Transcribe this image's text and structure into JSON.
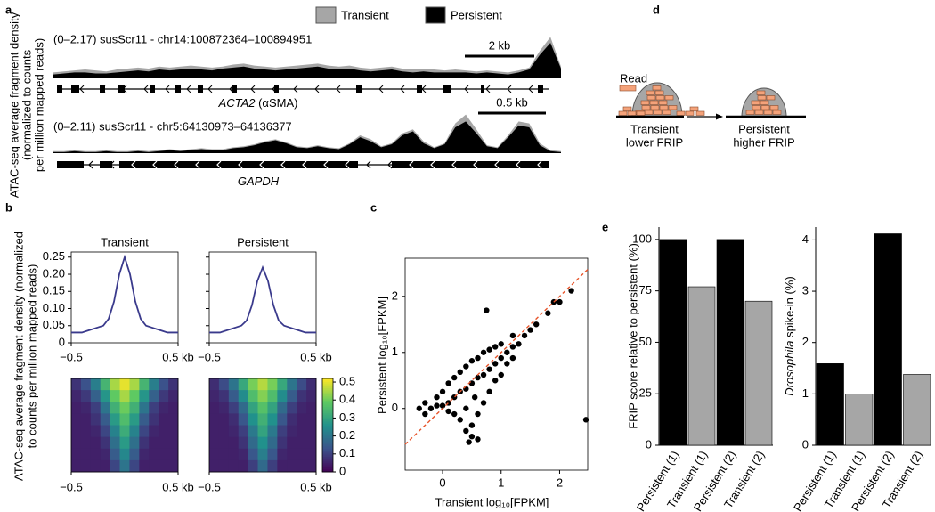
{
  "panel_labels": [
    "a",
    "b",
    "c",
    "d",
    "e"
  ],
  "diagram": {
    "read_label": "Read",
    "states": [
      [
        "Transient",
        "lower FRIP"
      ],
      [
        "Persistent",
        "higher FRIP"
      ]
    ]
  },
  "chart_data": [
    {
      "type": "genome-track",
      "ylabel": [
        "ATAC-seq average fragment density",
        "(normalized to counts",
        "per million mapped reads)"
      ],
      "series": [
        {
          "name": "Transient",
          "color": "#a6a6a6"
        },
        {
          "name": "Persistent",
          "color": "#000000"
        }
      ],
      "tracks": [
        {
          "label": "(0–2.17) susScr11 - chr14:100872364–100894951",
          "ylim": [
            0,
            2.17
          ],
          "scale_bar": "2 kb",
          "gene": "ACTA2",
          "gene_note": "(αSMA)",
          "values": [
            [
              0.3,
              0.35,
              0.4,
              0.45,
              0.4,
              0.35,
              0.45,
              0.5,
              0.55,
              0.5,
              0.6,
              0.55,
              0.6,
              0.65,
              0.6,
              0.55,
              0.6,
              0.7,
              0.75,
              0.65,
              0.6,
              0.55,
              0.6,
              0.65,
              0.7,
              0.75,
              0.65,
              0.6,
              0.65,
              0.55,
              0.5,
              0.55,
              0.6,
              0.5,
              0.45,
              0.5,
              0.45,
              0.4,
              0.45,
              0.4,
              0.35,
              0.4,
              0.35,
              0.3,
              0.4,
              0.55,
              1.4,
              2.1,
              0.6
            ],
            [
              0.2,
              0.25,
              0.3,
              0.3,
              0.25,
              0.25,
              0.3,
              0.35,
              0.4,
              0.35,
              0.45,
              0.4,
              0.45,
              0.5,
              0.45,
              0.4,
              0.5,
              0.55,
              0.6,
              0.5,
              0.45,
              0.4,
              0.45,
              0.5,
              0.55,
              0.6,
              0.5,
              0.45,
              0.5,
              0.4,
              0.35,
              0.4,
              0.45,
              0.35,
              0.3,
              0.35,
              0.3,
              0.3,
              0.3,
              0.3,
              0.25,
              0.3,
              0.25,
              0.2,
              0.3,
              0.45,
              1.2,
              1.8,
              0.5
            ]
          ]
        },
        {
          "label": "(0–2.11) susScr11 - chr5:64130973–64136377",
          "ylim": [
            0,
            2.11
          ],
          "scale_bar": "0.5 kb",
          "gene": "GAPDH",
          "values": [
            [
              0.1,
              0.1,
              0.15,
              0.1,
              0.1,
              0.15,
              0.1,
              0.1,
              0.15,
              0.1,
              0.15,
              0.2,
              0.15,
              0.2,
              0.25,
              0.2,
              0.2,
              0.3,
              0.35,
              0.45,
              0.6,
              0.7,
              0.55,
              0.35,
              0.3,
              0.4,
              0.3,
              0.25,
              0.5,
              0.9,
              0.7,
              0.35,
              0.5,
              1.0,
              1.2,
              0.6,
              0.3,
              0.5,
              1.5,
              1.95,
              1.2,
              0.4,
              0.3,
              0.9,
              1.6,
              1.5,
              0.5,
              0.15,
              0.1
            ],
            [
              0.05,
              0.05,
              0.1,
              0.05,
              0.05,
              0.1,
              0.05,
              0.05,
              0.1,
              0.05,
              0.1,
              0.15,
              0.1,
              0.15,
              0.2,
              0.15,
              0.15,
              0.25,
              0.3,
              0.4,
              0.55,
              0.65,
              0.5,
              0.3,
              0.25,
              0.35,
              0.25,
              0.2,
              0.45,
              0.8,
              0.6,
              0.3,
              0.45,
              0.9,
              1.1,
              0.5,
              0.25,
              0.45,
              1.3,
              1.6,
              1.0,
              0.35,
              0.25,
              0.8,
              1.4,
              1.3,
              0.4,
              0.1,
              0.05
            ]
          ]
        }
      ]
    },
    {
      "type": "profile",
      "ylabel": [
        "ATAC-seq average fragment density (normalized",
        "to counts per million mapped reads)"
      ],
      "color": "#3a3a8c",
      "x": [
        -0.5,
        -0.45,
        -0.4,
        -0.35,
        -0.3,
        -0.25,
        -0.2,
        -0.15,
        -0.1,
        -0.05,
        0,
        0.05,
        0.1,
        0.15,
        0.2,
        0.25,
        0.3,
        0.35,
        0.4,
        0.45,
        0.5
      ],
      "xlim": [
        -0.5,
        0.5
      ],
      "xticks": [
        {
          "value": -0.5,
          "label": "−0.5"
        },
        {
          "value": 0.5,
          "label": "0.5 kb"
        }
      ],
      "ylim": [
        0,
        0.265
      ],
      "yticks": [
        0,
        0.05,
        {
          "value": 0.1,
          "label": "0.10"
        },
        0.15,
        {
          "value": 0.2,
          "label": "0.20"
        },
        0.25
      ],
      "panels": [
        {
          "title": "Transient",
          "values": [
            0.03,
            0.03,
            0.03,
            0.035,
            0.04,
            0.045,
            0.05,
            0.07,
            0.12,
            0.2,
            0.25,
            0.2,
            0.12,
            0.07,
            0.05,
            0.045,
            0.04,
            0.035,
            0.03,
            0.03,
            0.03
          ]
        },
        {
          "title": "Persistent",
          "values": [
            0.03,
            0.03,
            0.03,
            0.035,
            0.04,
            0.045,
            0.05,
            0.065,
            0.11,
            0.18,
            0.22,
            0.18,
            0.11,
            0.065,
            0.05,
            0.045,
            0.04,
            0.035,
            0.03,
            0.03,
            0.03
          ]
        }
      ]
    },
    {
      "type": "heatmap",
      "colorscale": "viridis",
      "xlim": [
        -0.5,
        0.5
      ],
      "xticks": [
        {
          "value": -0.5,
          "label": "−0.5"
        },
        {
          "value": 0.5,
          "label": "0.5 kb"
        }
      ],
      "clim": [
        0,
        0.52
      ],
      "cticks": [
        0,
        0.1,
        0.2,
        0.3,
        0.4,
        0.5
      ],
      "panels": [
        {
          "values": [
            [
              0.08,
              0.13,
              0.22,
              0.34,
              0.45,
              0.5,
              0.45,
              0.34,
              0.22,
              0.13,
              0.08
            ],
            [
              0.06,
              0.09,
              0.16,
              0.27,
              0.39,
              0.45,
              0.39,
              0.27,
              0.16,
              0.09,
              0.06
            ],
            [
              0.05,
              0.06,
              0.1,
              0.2,
              0.33,
              0.4,
              0.33,
              0.2,
              0.1,
              0.06,
              0.05
            ],
            [
              0.05,
              0.05,
              0.08,
              0.15,
              0.28,
              0.36,
              0.28,
              0.15,
              0.08,
              0.05,
              0.05
            ],
            [
              0.05,
              0.05,
              0.06,
              0.11,
              0.23,
              0.32,
              0.23,
              0.11,
              0.06,
              0.05,
              0.05
            ],
            [
              0.05,
              0.05,
              0.05,
              0.08,
              0.19,
              0.28,
              0.19,
              0.08,
              0.05,
              0.05,
              0.05
            ],
            [
              0.05,
              0.05,
              0.05,
              0.06,
              0.15,
              0.24,
              0.15,
              0.06,
              0.05,
              0.05,
              0.05
            ],
            [
              0.05,
              0.05,
              0.05,
              0.05,
              0.11,
              0.2,
              0.11,
              0.05,
              0.05,
              0.05,
              0.05
            ]
          ]
        },
        {
          "values": [
            [
              0.07,
              0.12,
              0.2,
              0.31,
              0.41,
              0.46,
              0.41,
              0.31,
              0.2,
              0.12,
              0.07
            ],
            [
              0.06,
              0.08,
              0.15,
              0.25,
              0.36,
              0.42,
              0.36,
              0.25,
              0.15,
              0.08,
              0.06
            ],
            [
              0.05,
              0.06,
              0.1,
              0.18,
              0.3,
              0.37,
              0.3,
              0.18,
              0.1,
              0.06,
              0.05
            ],
            [
              0.05,
              0.05,
              0.07,
              0.14,
              0.26,
              0.33,
              0.26,
              0.14,
              0.07,
              0.05,
              0.05
            ],
            [
              0.05,
              0.05,
              0.06,
              0.1,
              0.21,
              0.3,
              0.21,
              0.1,
              0.06,
              0.05,
              0.05
            ],
            [
              0.05,
              0.05,
              0.05,
              0.08,
              0.18,
              0.26,
              0.18,
              0.08,
              0.05,
              0.05,
              0.05
            ],
            [
              0.05,
              0.05,
              0.05,
              0.06,
              0.14,
              0.22,
              0.14,
              0.06,
              0.05,
              0.05,
              0.05
            ],
            [
              0.05,
              0.05,
              0.05,
              0.05,
              0.1,
              0.18,
              0.1,
              0.05,
              0.05,
              0.05,
              0.05
            ]
          ]
        }
      ]
    },
    {
      "type": "scatter",
      "xlabel": "Transient log₁₀[FPKM]",
      "ylabel": "Persistent log₁₀[FPKM]",
      "color": "#000000",
      "diagonal": true,
      "diagonal_color": "#e8542a",
      "xlim": [
        -0.64,
        2.48
      ],
      "ylim": [
        -1.1,
        2.68
      ],
      "xticks": [
        0,
        1,
        2
      ],
      "yticks": [
        0,
        1,
        2
      ],
      "x": [
        -0.3,
        -0.2,
        -0.1,
        0,
        0.1,
        0.2,
        0.3,
        0.4,
        0.5,
        0.6,
        0.7,
        0.8,
        0.9,
        1.0,
        1.1,
        1.2,
        1.3,
        1.4,
        1.5,
        1.6,
        1.8,
        2.0,
        0,
        0.1,
        0.2,
        0.3,
        0.4,
        0.5,
        0.6,
        0.7,
        0.8,
        0.9,
        1.0,
        1.2,
        -0.1,
        -0.3,
        -0.4,
        0.3,
        0.4,
        0.5,
        0.6,
        0.45,
        0.5,
        0.6,
        0.7,
        0.8,
        0.9,
        1.0,
        1.1,
        1.2,
        0.2,
        0.1,
        0.4,
        0.55,
        0.75,
        2.45,
        1.9,
        2.2
      ],
      "y": [
        -0.1,
        0,
        0.05,
        0.05,
        0.1,
        0.2,
        0.3,
        0.35,
        0.45,
        0.55,
        0.6,
        0.7,
        0.8,
        0.9,
        1.0,
        1.1,
        1.15,
        1.3,
        1.4,
        1.5,
        1.7,
        1.9,
        0.3,
        0.45,
        0.55,
        0.65,
        0.75,
        0.85,
        0.9,
        1.0,
        1.05,
        1.1,
        1.15,
        1.3,
        0.2,
        0.1,
        0.0,
        -0.2,
        -0.4,
        -0.5,
        -0.55,
        -0.6,
        -0.3,
        -0.1,
        0.1,
        0.3,
        0.5,
        0.6,
        0.8,
        0.9,
        -0.1,
        -0.05,
        0.0,
        0.2,
        1.75,
        -0.2,
        1.9,
        2.1
      ]
    },
    {
      "type": "bar",
      "ylabel": "FRIP score relative to persistent (%)",
      "categories": [
        "Persistent (1)",
        "Transient (1)",
        "Persistent (2)",
        "Transient (2)"
      ],
      "values": [
        100,
        77,
        100,
        70
      ],
      "colors": [
        "#000000",
        "#a6a6a6",
        "#000000",
        "#a6a6a6"
      ],
      "ylim": [
        0,
        106
      ],
      "yticks": [
        0,
        25,
        50,
        75,
        100
      ]
    },
    {
      "type": "bar",
      "ylabel": [
        {
          "text": "Drosophila",
          "italic": true
        },
        {
          "text": " spike-in (%)"
        }
      ],
      "categories": [
        "Persistent (1)",
        "Transient (1)",
        "Persistent (2)",
        "Transient (2)"
      ],
      "values": [
        1.59,
        1.0,
        4.12,
        1.38
      ],
      "colors": [
        "#000000",
        "#a6a6a6",
        "#000000",
        "#a6a6a6"
      ],
      "ylim": [
        0,
        4.25
      ],
      "yticks": [
        0,
        1,
        2,
        3,
        4
      ]
    }
  ]
}
